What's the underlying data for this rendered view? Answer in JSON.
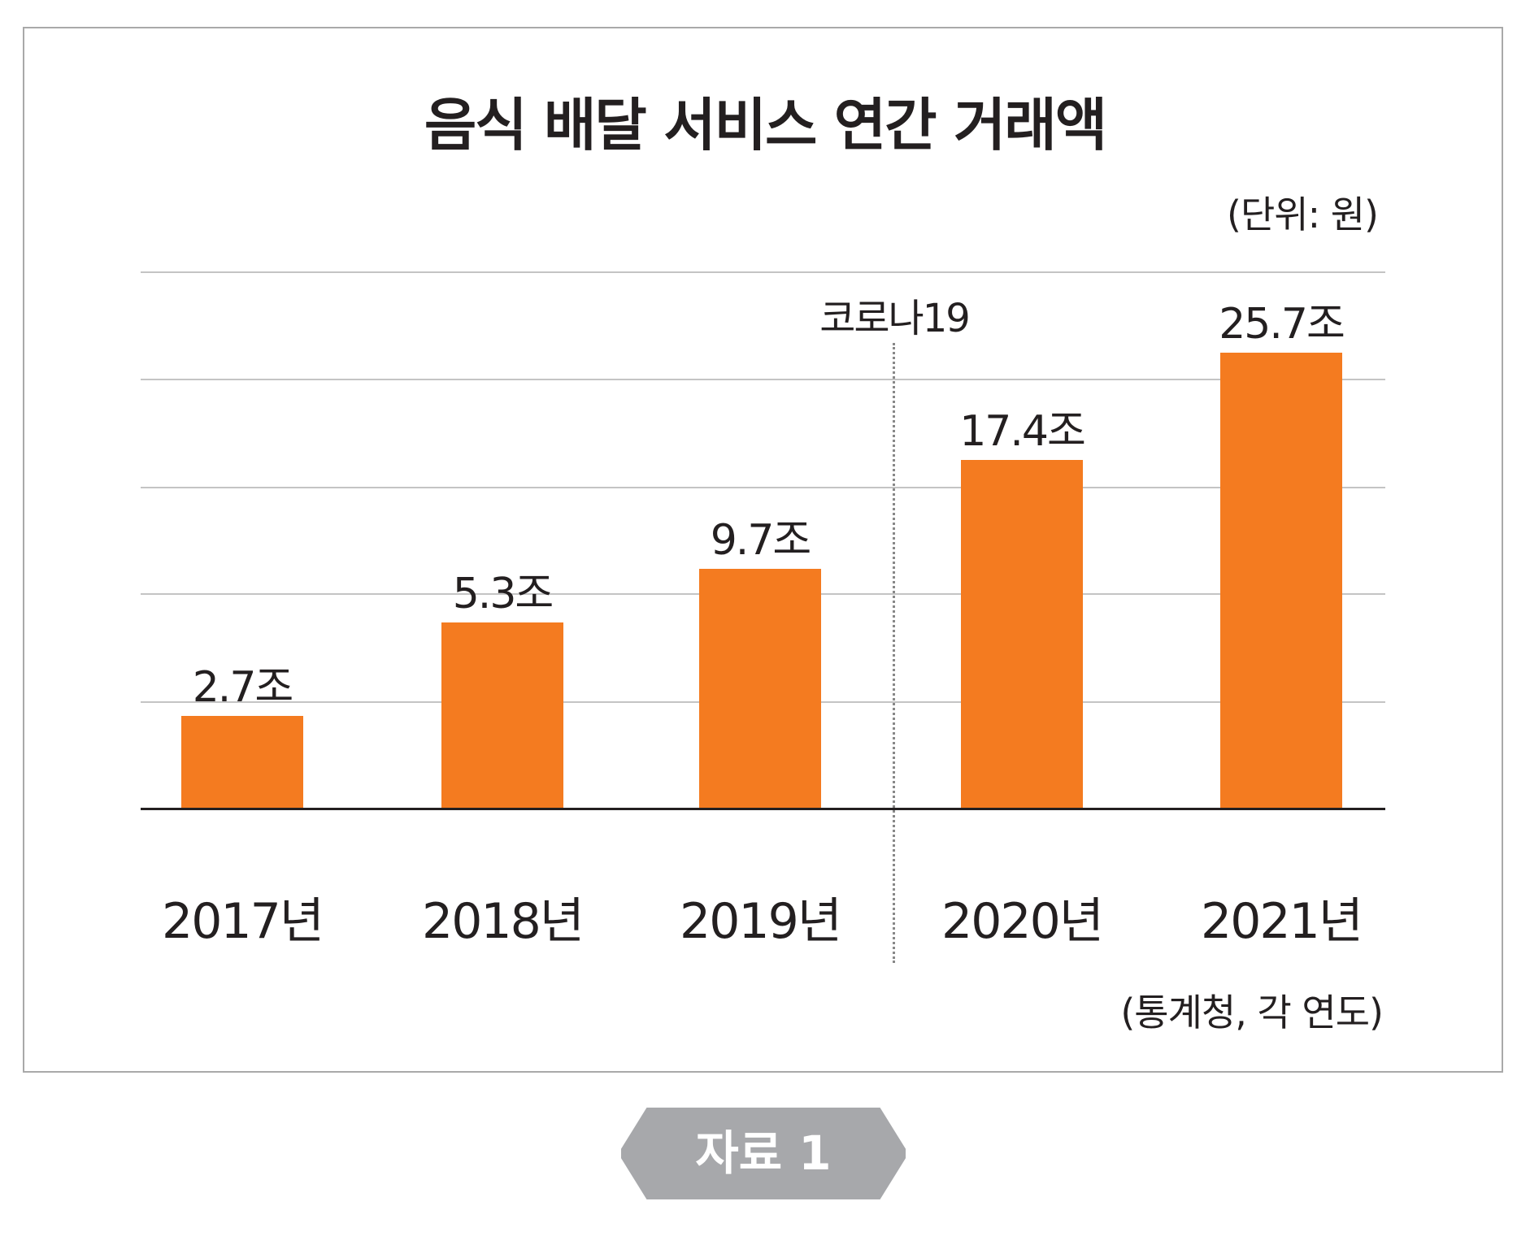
{
  "chart_data": {
    "type": "bar",
    "title": "음식 배달 서비스 연간 거래액",
    "unit_label": "(단위: 원)",
    "categories": [
      "2017년",
      "2018년",
      "2019년",
      "2020년",
      "2021년"
    ],
    "values": [
      2.7,
      5.3,
      9.7,
      17.4,
      25.7
    ],
    "value_labels": [
      "2.7조",
      "5.3조",
      "9.7조",
      "17.4조",
      "25.7조"
    ],
    "annotation": "코로나19",
    "source": "(통계청, 각 연도)",
    "grid": true,
    "bar_color": "#f47b20"
  },
  "badge": {
    "label": "자료 1",
    "color": "#a7a8ab"
  }
}
